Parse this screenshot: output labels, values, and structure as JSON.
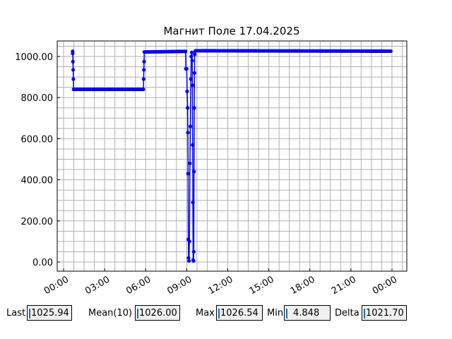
{
  "chart_data": {
    "type": "line",
    "title": "Магнит Поле 17.04.2025",
    "xlabel": "",
    "ylabel": "",
    "x_tick_labels": [
      "00:00",
      "03:00",
      "06:00",
      "09:00",
      "12:00",
      "15:00",
      "18:00",
      "21:00",
      "00:00"
    ],
    "y_tick_labels": [
      "0.00",
      "200.00",
      "400.00",
      "600.00",
      "800.00",
      "1000.00"
    ],
    "ylim": [
      -45,
      1075
    ],
    "xlim": [
      "23:30",
      "25:30"
    ],
    "grid": true,
    "series_color": "#0000ff",
    "points": [
      [
        "00:40",
        1025
      ],
      [
        "00:40",
        1015
      ],
      [
        "00:41",
        975
      ],
      [
        "00:42",
        935
      ],
      [
        "00:43",
        890
      ],
      [
        "00:44",
        840
      ],
      [
        "05:50",
        840
      ],
      [
        "05:51",
        890
      ],
      [
        "05:52",
        935
      ],
      [
        "05:53",
        975
      ],
      [
        "05:54",
        1022
      ],
      [
        "08:55",
        1025
      ],
      [
        "08:56",
        940
      ],
      [
        "09:00",
        940
      ],
      [
        "09:02",
        830
      ],
      [
        "09:04",
        750
      ],
      [
        "09:05",
        630
      ],
      [
        "09:06",
        430
      ],
      [
        "09:07",
        110
      ],
      [
        "09:08",
        20
      ],
      [
        "09:10",
        5
      ],
      [
        "09:12",
        100
      ],
      [
        "09:14",
        480
      ],
      [
        "09:16",
        660
      ],
      [
        "09:18",
        890
      ],
      [
        "09:20",
        1000
      ],
      [
        "09:22",
        1020
      ],
      [
        "09:24",
        980
      ],
      [
        "09:25",
        860
      ],
      [
        "09:26",
        570
      ],
      [
        "09:27",
        290
      ],
      [
        "09:28",
        10
      ],
      [
        "09:30",
        5
      ],
      [
        "09:31",
        50
      ],
      [
        "09:32",
        440
      ],
      [
        "09:33",
        750
      ],
      [
        "09:34",
        920
      ],
      [
        "09:35",
        1010
      ],
      [
        "09:37",
        1026
      ],
      [
        "09:40",
        1028
      ],
      [
        "23:55",
        1026
      ]
    ]
  },
  "stats": {
    "last_label": "Last",
    "last_value": "1025.94",
    "mean_label": "Mean(10)",
    "mean_value": "1026.00",
    "max_label": "Max",
    "max_value": "1026.54",
    "min_label": "Min",
    "min_value": "4.848",
    "delta_label": "Delta",
    "delta_value": "1021.70"
  }
}
